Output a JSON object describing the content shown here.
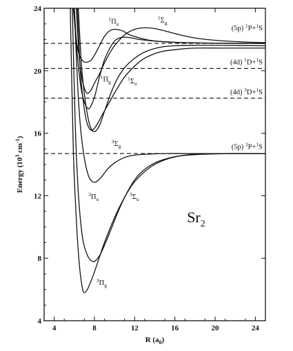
{
  "chart_data": {
    "type": "line",
    "title": "",
    "xlabel": "R (a",
    "xlabel_sub": "0",
    "xlabel_end": ")",
    "ylabel": "Energy (10",
    "ylabel_sup": "3",
    "ylabel_end": " cm",
    "ylabel_sup2": "-1",
    "ylabel_close": ")",
    "xlim": [
      3,
      25
    ],
    "ylim": [
      4,
      24
    ],
    "xticks": [
      4,
      8,
      12,
      16,
      20,
      24
    ],
    "yticks": [
      4,
      8,
      12,
      16,
      20,
      24
    ],
    "molecule": {
      "main": "Sr",
      "sub": "2"
    },
    "asymptotes": [
      {
        "prefix": "(5p) ",
        "sup1": "1",
        "t1": "P+",
        "sup2": "1",
        "t2": "S",
        "y": 21.75,
        "label_y": 22.6
      },
      {
        "prefix": "(4d) ",
        "sup1": "1",
        "t1": "D+",
        "sup2": "1",
        "t2": "S",
        "y": 20.15,
        "label_y": 20.4
      },
      {
        "prefix": "(4d) ",
        "sup1": "3",
        "t1": "D+",
        "sup2": "1",
        "t2": "S",
        "y": 18.25,
        "label_y": 18.5
      },
      {
        "prefix": "(5p) ",
        "sup1": "3",
        "t1": "P+",
        "sup2": "1",
        "t2": "S",
        "y": 14.7,
        "label_y": 15.0
      }
    ],
    "series": [
      {
        "sup": "3",
        "sym": "Π",
        "sub": "g",
        "label_x": 8.2,
        "label_y": 6.3,
        "x": [
          5.6,
          5.9,
          6.2,
          6.5,
          6.8,
          7.0,
          7.3,
          7.7,
          8.2,
          9.0,
          10.0,
          11.0,
          12.0,
          13.5,
          15.0,
          17.0,
          19.0,
          21.0,
          23.0,
          25.0
        ],
        "y": [
          24,
          15.0,
          10.5,
          7.6,
          6.1,
          5.8,
          6.0,
          6.6,
          7.5,
          9.0,
          10.6,
          11.9,
          12.9,
          13.8,
          14.3,
          14.6,
          14.68,
          14.7,
          14.7,
          14.7
        ]
      },
      {
        "sup": "3",
        "sym": "Π",
        "sub": "u",
        "label_x": 7.4,
        "label_y": 11.8,
        "x": [
          5.8,
          6.1,
          6.4,
          6.8,
          7.3,
          7.8,
          8.2,
          8.7,
          9.5,
          10.5,
          11.5,
          12.5,
          14.0,
          16.0,
          18.0,
          20.0,
          22.0,
          25.0
        ],
        "y": [
          24,
          16.5,
          12.2,
          9.4,
          8.2,
          7.8,
          7.9,
          8.4,
          9.6,
          11.2,
          12.5,
          13.4,
          14.1,
          14.5,
          14.63,
          14.68,
          14.7,
          14.7
        ]
      },
      {
        "sup": "3",
        "sym": "Σ",
        "sub": "u",
        "label_x": 11.5,
        "label_y": 11.8,
        "x": [
          6.0,
          6.3,
          6.6,
          7.0,
          7.4,
          7.8,
          8.2,
          8.7,
          9.3,
          10.0,
          11.0,
          12.0,
          13.5,
          15.0,
          17.0,
          19.0,
          22.0,
          25.0
        ],
        "y": [
          24,
          19.5,
          16.5,
          14.4,
          13.3,
          12.9,
          12.9,
          13.2,
          13.7,
          14.1,
          14.45,
          14.6,
          14.67,
          14.7,
          14.7,
          14.7,
          14.7,
          14.7
        ]
      },
      {
        "sup": "3",
        "sym": "Σ",
        "sub": "g",
        "label_x": 9.7,
        "label_y": 15.2,
        "x": [
          6.3,
          6.6,
          6.9,
          7.2,
          7.5,
          7.8,
          8.2,
          8.8,
          9.5,
          10.2,
          11.0,
          12.0,
          13.0,
          14.5,
          16.0,
          18.0,
          21.0,
          25.0
        ],
        "y": [
          24,
          20.0,
          18.0,
          16.8,
          16.3,
          16.2,
          16.5,
          17.2,
          18.0,
          18.8,
          19.6,
          20.3,
          20.8,
          21.2,
          21.35,
          21.45,
          21.45,
          21.45
        ]
      },
      {
        "sup": "1",
        "sym": "Σ",
        "sub": "u",
        "label_x": 11.3,
        "label_y": 19.2,
        "x": [
          6.4,
          6.7,
          7.0,
          7.3,
          7.6,
          8.0,
          8.5,
          9.0,
          9.6,
          10.2,
          11.0,
          12.0,
          13.0,
          14.5,
          16.0,
          18.0,
          21.0,
          25.0
        ],
        "y": [
          24,
          20.5,
          18.5,
          17.2,
          16.4,
          16.1,
          16.5,
          17.4,
          18.5,
          19.4,
          20.2,
          20.8,
          21.2,
          21.5,
          21.6,
          21.63,
          21.62,
          21.6
        ]
      },
      {
        "sup": "1",
        "sym": "Π",
        "sub": "g",
        "label_x": 8.6,
        "label_y": 19.3,
        "x": [
          6.0,
          6.3,
          6.6,
          6.9,
          7.2,
          7.5,
          8.0,
          8.5,
          9.0,
          9.5,
          10.0,
          10.5,
          11.0,
          11.7,
          12.5,
          14.0,
          16.0,
          18.0,
          21.0,
          25.0
        ],
        "y": [
          24,
          21.0,
          19.2,
          18.2,
          17.7,
          17.6,
          18.3,
          19.6,
          20.7,
          21.4,
          21.9,
          22.1,
          22.15,
          22.1,
          22.0,
          21.9,
          21.82,
          21.78,
          21.76,
          21.75
        ]
      },
      {
        "sup": "1",
        "sym": "Π",
        "sub": "u",
        "label_x": 9.4,
        "label_y": 23.0,
        "x": [
          5.9,
          6.2,
          6.5,
          6.9,
          7.3,
          7.7,
          8.1,
          8.5,
          9.0,
          9.5,
          10.0,
          10.8,
          11.5,
          12.5,
          13.5,
          15.0,
          17.0,
          19.0,
          22.0,
          25.0
        ],
        "y": [
          24,
          22.0,
          21.0,
          20.6,
          20.55,
          20.7,
          21.1,
          21.6,
          22.2,
          22.55,
          22.65,
          22.55,
          22.3,
          22.1,
          21.95,
          21.85,
          21.8,
          21.77,
          21.75,
          21.75
        ]
      },
      {
        "sup": "1",
        "sym": "Σ",
        "sub": "g",
        "label_x": 14.3,
        "label_y": 23.1,
        "x": [
          6.2,
          6.5,
          6.8,
          7.2,
          7.6,
          8.0,
          8.5,
          9.0,
          9.5,
          10.0,
          11.0,
          12.0,
          13.0,
          14.0,
          15.0,
          16.5,
          18.0,
          20.0,
          22.5,
          25.0
        ],
        "y": [
          24,
          20.8,
          19.4,
          18.6,
          18.7,
          19.2,
          19.8,
          20.5,
          21.1,
          21.6,
          22.3,
          22.65,
          22.75,
          22.7,
          22.55,
          22.3,
          22.1,
          21.95,
          21.85,
          21.8
        ]
      }
    ]
  }
}
